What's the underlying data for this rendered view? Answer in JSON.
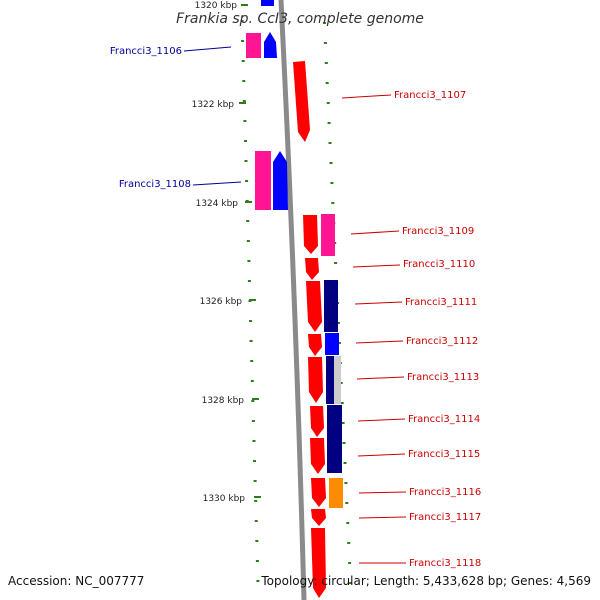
{
  "title": "Frankia sp. CcI3, complete genome",
  "footer": {
    "accession": "Accession: NC_007777",
    "topology": "Topology: circular; Length: 5,433,628 bp; Genes: 4,569"
  },
  "colors": {
    "backbone": "#8a8a8a",
    "ticks": "#2e7d1c",
    "forward_label": "#cc0000",
    "reverse_label": "#000099",
    "red": "#ff0000",
    "pink": "#ff1493",
    "blue": "#0000ff",
    "navy": "#000080",
    "gray": "#cccccc",
    "orange": "#ff8c00"
  },
  "kbp_ticks": [
    {
      "label": "1320 kbp",
      "pos": 1320
    },
    {
      "label": "1322 kbp",
      "pos": 1322
    },
    {
      "label": "1324 kbp",
      "pos": 1324
    },
    {
      "label": "1326 kbp",
      "pos": 1326
    },
    {
      "label": "1328 kbp",
      "pos": 1328
    },
    {
      "label": "1330 kbp",
      "pos": 1330
    }
  ],
  "genes": [
    {
      "name": "Francci3_1106",
      "strand": "reverse"
    },
    {
      "name": "Francci3_1107",
      "strand": "forward"
    },
    {
      "name": "Francci3_1108",
      "strand": "reverse"
    },
    {
      "name": "Francci3_1109",
      "strand": "forward"
    },
    {
      "name": "Francci3_1110",
      "strand": "forward"
    },
    {
      "name": "Francci3_1111",
      "strand": "forward"
    },
    {
      "name": "Francci3_1112",
      "strand": "forward"
    },
    {
      "name": "Francci3_1113",
      "strand": "forward"
    },
    {
      "name": "Francci3_1114",
      "strand": "forward"
    },
    {
      "name": "Francci3_1115",
      "strand": "forward"
    },
    {
      "name": "Francci3_1116",
      "strand": "forward"
    },
    {
      "name": "Francci3_1117",
      "strand": "forward"
    },
    {
      "name": "Francci3_1118",
      "strand": "forward"
    }
  ]
}
